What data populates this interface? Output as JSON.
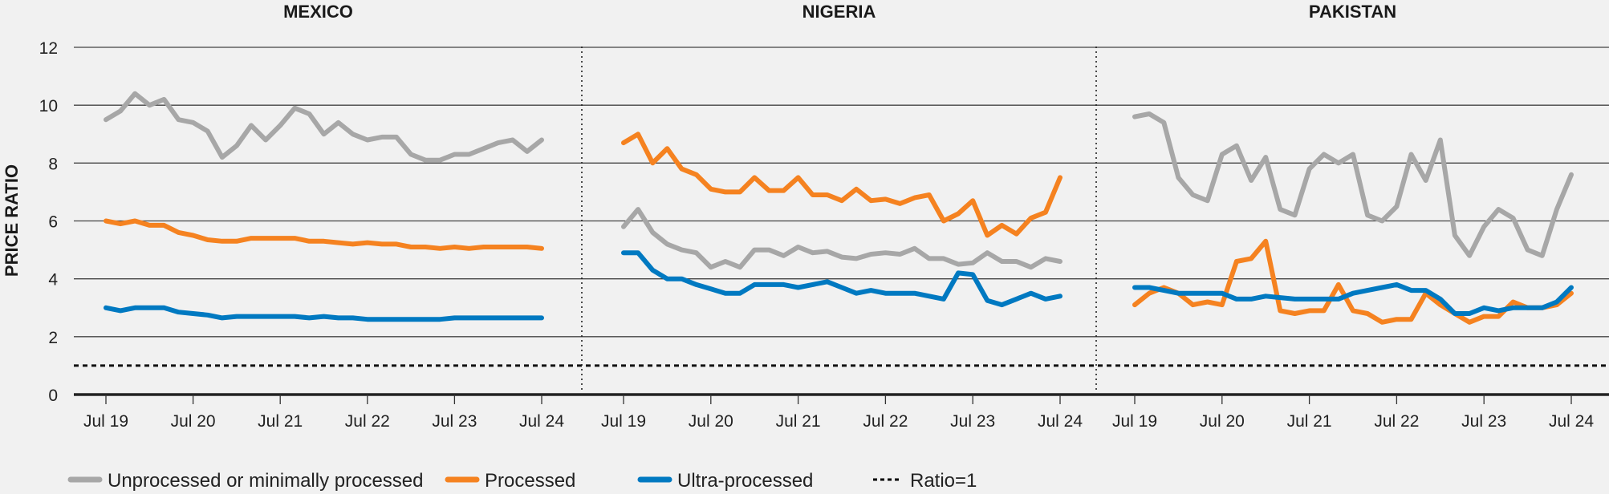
{
  "chart_data": {
    "type": "line",
    "ylabel": "PRICE RATIO",
    "ylim": [
      0,
      12
    ],
    "yticks": [
      0,
      2,
      4,
      6,
      8,
      10,
      12
    ],
    "xtick_labels": [
      "Jul 19",
      "Jul 20",
      "Jul 21",
      "Jul 22",
      "Jul 23",
      "Jul 24"
    ],
    "grid": "horizontal",
    "legend_placement": "bottom",
    "reference_line": {
      "name": "Ratio=1",
      "value": 1,
      "style": "dashed",
      "color": "#000000"
    },
    "dates": [
      "2019-07",
      "2019-09",
      "2019-11",
      "2020-01",
      "2020-03",
      "2020-05",
      "2020-07",
      "2020-09",
      "2020-11",
      "2021-01",
      "2021-03",
      "2021-05",
      "2021-07",
      "2021-09",
      "2021-11",
      "2022-01",
      "2022-03",
      "2022-05",
      "2022-07",
      "2022-09",
      "2022-11",
      "2023-01",
      "2023-03",
      "2023-05",
      "2023-07",
      "2023-09",
      "2023-11",
      "2024-01",
      "2024-03",
      "2024-05",
      "2024-07"
    ],
    "series_styles": [
      {
        "name": "Unprocessed or minimally processed",
        "color": "#a7a7a7"
      },
      {
        "name": "Processed",
        "color": "#f58220"
      },
      {
        "name": "Ultra-processed",
        "color": "#0079c1"
      }
    ],
    "panels": [
      {
        "title": "MEXICO",
        "series": [
          {
            "name": "Unprocessed or minimally processed",
            "values": [
              9.5,
              9.8,
              10.4,
              10.0,
              10.2,
              9.5,
              9.4,
              9.1,
              8.2,
              8.6,
              9.3,
              8.8,
              9.3,
              9.9,
              9.7,
              9.0,
              9.4,
              9.0,
              8.8,
              8.9,
              8.9,
              8.3,
              8.1,
              8.1,
              8.3,
              8.3,
              8.5,
              8.7,
              8.8,
              8.4,
              8.8
            ]
          },
          {
            "name": "Processed",
            "values": [
              6.0,
              5.9,
              6.0,
              5.85,
              5.85,
              5.6,
              5.5,
              5.35,
              5.3,
              5.3,
              5.4,
              5.4,
              5.4,
              5.4,
              5.3,
              5.3,
              5.25,
              5.2,
              5.25,
              5.2,
              5.2,
              5.1,
              5.1,
              5.05,
              5.1,
              5.05,
              5.1,
              5.1,
              5.1,
              5.1,
              5.05
            ]
          },
          {
            "name": "Ultra-processed",
            "values": [
              3.0,
              2.9,
              3.0,
              3.0,
              3.0,
              2.85,
              2.8,
              2.75,
              2.65,
              2.7,
              2.7,
              2.7,
              2.7,
              2.7,
              2.65,
              2.7,
              2.65,
              2.65,
              2.6,
              2.6,
              2.6,
              2.6,
              2.6,
              2.6,
              2.65,
              2.65,
              2.65,
              2.65,
              2.65,
              2.65,
              2.65
            ]
          }
        ]
      },
      {
        "title": "NIGERIA",
        "series": [
          {
            "name": "Unprocessed or minimally processed",
            "values": [
              5.8,
              6.4,
              5.6,
              5.2,
              5.0,
              4.9,
              4.4,
              4.6,
              4.4,
              5.0,
              5.0,
              4.8,
              5.1,
              4.9,
              4.95,
              4.75,
              4.7,
              4.85,
              4.9,
              4.85,
              5.05,
              4.7,
              4.7,
              4.5,
              4.55,
              4.9,
              4.6,
              4.6,
              4.4,
              4.7,
              4.6
            ]
          },
          {
            "name": "Processed",
            "values": [
              8.7,
              9.0,
              8.0,
              8.5,
              7.8,
              7.6,
              7.1,
              7.0,
              7.0,
              7.5,
              7.05,
              7.05,
              7.5,
              6.9,
              6.9,
              6.7,
              7.1,
              6.7,
              6.75,
              6.6,
              6.8,
              6.9,
              6.0,
              6.25,
              6.7,
              5.5,
              5.85,
              5.55,
              6.1,
              6.3,
              7.5
            ]
          },
          {
            "name": "Ultra-processed",
            "values": [
              4.9,
              4.9,
              4.3,
              4.0,
              4.0,
              3.8,
              3.65,
              3.5,
              3.5,
              3.8,
              3.8,
              3.8,
              3.7,
              3.8,
              3.9,
              3.7,
              3.5,
              3.6,
              3.5,
              3.5,
              3.5,
              3.4,
              3.3,
              4.2,
              4.15,
              3.25,
              3.1,
              3.3,
              3.5,
              3.3,
              3.4
            ]
          }
        ]
      },
      {
        "title": "PAKISTAN",
        "series": [
          {
            "name": "Unprocessed or minimally processed",
            "values": [
              9.6,
              9.7,
              9.4,
              7.5,
              6.9,
              6.7,
              8.3,
              8.6,
              7.4,
              8.2,
              6.4,
              6.2,
              7.8,
              8.3,
              8.0,
              8.3,
              6.2,
              6.0,
              6.5,
              8.3,
              7.4,
              8.8,
              5.5,
              4.8,
              5.8,
              6.4,
              6.1,
              5.0,
              4.8,
              6.4,
              7.6
            ]
          },
          {
            "name": "Processed",
            "values": [
              3.1,
              3.5,
              3.7,
              3.5,
              3.1,
              3.2,
              3.1,
              4.6,
              4.7,
              5.3,
              2.9,
              2.8,
              2.9,
              2.9,
              3.8,
              2.9,
              2.8,
              2.5,
              2.6,
              2.6,
              3.5,
              3.1,
              2.8,
              2.5,
              2.7,
              2.7,
              3.2,
              3.0,
              3.0,
              3.1,
              3.5
            ]
          },
          {
            "name": "Ultra-processed",
            "values": [
              3.7,
              3.7,
              3.6,
              3.5,
              3.5,
              3.5,
              3.5,
              3.3,
              3.3,
              3.4,
              3.35,
              3.3,
              3.3,
              3.3,
              3.3,
              3.5,
              3.6,
              3.7,
              3.8,
              3.6,
              3.6,
              3.3,
              2.8,
              2.8,
              3.0,
              2.9,
              3.0,
              3.0,
              3.0,
              3.2,
              3.7
            ]
          }
        ]
      }
    ],
    "legend": [
      {
        "label": "Unprocessed or minimally processed",
        "color": "#a7a7a7",
        "style": "solid"
      },
      {
        "label": "Processed",
        "color": "#f58220",
        "style": "solid"
      },
      {
        "label": "Ultra-processed",
        "color": "#0079c1",
        "style": "solid"
      },
      {
        "label": "Ratio=1",
        "color": "#000000",
        "style": "dashed"
      }
    ]
  }
}
